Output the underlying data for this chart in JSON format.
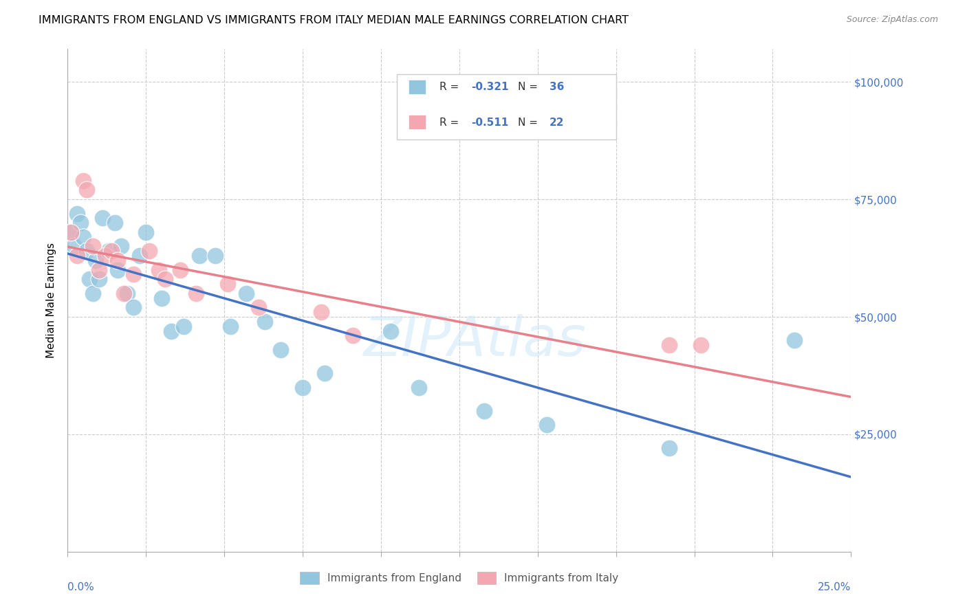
{
  "title": "IMMIGRANTS FROM ENGLAND VS IMMIGRANTS FROM ITALY MEDIAN MALE EARNINGS CORRELATION CHART",
  "source": "Source: ZipAtlas.com",
  "ylabel": "Median Male Earnings",
  "xlim": [
    0.0,
    0.25
  ],
  "ylim": [
    0,
    107000
  ],
  "color_england": "#92c5de",
  "color_italy": "#f4a7b0",
  "color_england_line": "#4472c4",
  "color_italy_line": "#e87f8a",
  "color_axis": "#4472c4",
  "watermark": "ZIPAtlas",
  "eng_x": [
    0.001,
    0.002,
    0.003,
    0.004,
    0.005,
    0.006,
    0.007,
    0.008,
    0.009,
    0.01,
    0.011,
    0.013,
    0.015,
    0.016,
    0.017,
    0.019,
    0.021,
    0.023,
    0.025,
    0.03,
    0.033,
    0.037,
    0.042,
    0.047,
    0.052,
    0.057,
    0.063,
    0.068,
    0.075,
    0.082,
    0.103,
    0.112,
    0.133,
    0.153,
    0.192,
    0.232
  ],
  "eng_y": [
    68000,
    65000,
    72000,
    70000,
    67000,
    64000,
    58000,
    55000,
    62000,
    58000,
    71000,
    64000,
    70000,
    60000,
    65000,
    55000,
    52000,
    63000,
    68000,
    54000,
    47000,
    48000,
    63000,
    63000,
    48000,
    55000,
    49000,
    43000,
    35000,
    38000,
    47000,
    35000,
    30000,
    27000,
    22000,
    45000
  ],
  "ita_x": [
    0.001,
    0.003,
    0.005,
    0.006,
    0.008,
    0.01,
    0.012,
    0.014,
    0.016,
    0.018,
    0.021,
    0.026,
    0.029,
    0.031,
    0.036,
    0.041,
    0.051,
    0.061,
    0.081,
    0.091,
    0.192,
    0.202
  ],
  "ita_y": [
    68000,
    63000,
    79000,
    77000,
    65000,
    60000,
    63000,
    64000,
    62000,
    55000,
    59000,
    64000,
    60000,
    58000,
    60000,
    55000,
    57000,
    52000,
    51000,
    46000,
    44000,
    44000
  ],
  "title_fontsize": 11.5,
  "source_fontsize": 9,
  "axis_fontsize": 11,
  "legend_r1": "-0.321",
  "legend_n1": "36",
  "legend_r2": "-0.511",
  "legend_n2": "22"
}
